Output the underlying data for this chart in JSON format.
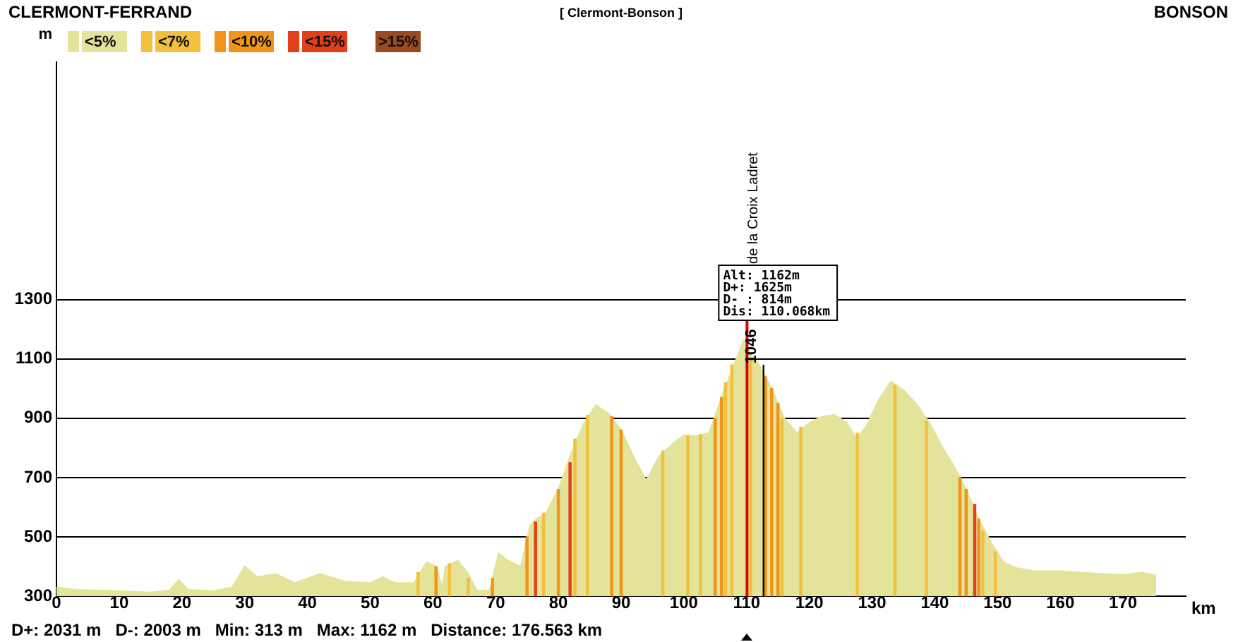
{
  "chart_data": {
    "type": "area",
    "title": "[ Clermont-Bonson ]",
    "xlabel": "km",
    "ylabel": "m",
    "annotations": [
      "CLERMONT-FERRAND",
      "BONSON",
      "D+: 2031 m   D-: 2003 m   Min: 313 m   Max: 1162 m   Distance: 176.563 km",
      "de la Croix Ladret",
      {
        "text": "1046",
        "x": 112.7,
        "y": 1046
      },
      ">15%"
    ],
    "xlim": [
      0,
      180
    ],
    "xticks": [
      0,
      10,
      20,
      30,
      40,
      50,
      60,
      70,
      80,
      90,
      100,
      110,
      120,
      130,
      140,
      150,
      160,
      170
    ],
    "ylim": [
      300,
      2100
    ],
    "yticks": [
      300,
      500,
      700,
      900,
      1100,
      1300
    ],
    "grid": "y",
    "legend": "top left",
    "series": [
      {
        "name": "<5%",
        "color": "#e3e39a",
        "x": [
          0,
          3,
          6,
          10,
          15,
          18,
          19.5,
          21,
          25,
          28,
          30,
          32,
          35,
          38,
          42,
          46,
          50,
          52,
          54,
          57,
          59,
          60.5,
          61.5,
          62,
          64,
          65.5,
          67,
          69,
          70.5,
          72,
          74,
          75.5,
          76.5,
          78,
          80,
          82,
          84,
          86,
          88,
          90,
          92,
          94,
          96,
          98,
          100,
          102,
          104,
          106,
          108,
          109.5,
          110.5,
          112,
          114,
          116,
          118,
          120,
          122,
          124,
          126,
          127.5,
          129,
          131,
          133,
          135,
          137,
          139,
          141,
          143,
          145,
          147,
          149,
          151,
          153,
          156,
          160,
          165,
          170,
          173,
          175.3
        ],
        "values": [
          330,
          322,
          320,
          318,
          313,
          320,
          355,
          322,
          318,
          330,
          400,
          365,
          375,
          345,
          375,
          350,
          345,
          365,
          345,
          345,
          415,
          400,
          330,
          400,
          420,
          380,
          320,
          318,
          445,
          420,
          400,
          540,
          560,
          580,
          660,
          780,
          880,
          945,
          915,
          860,
          770,
          690,
          770,
          810,
          843,
          840,
          850,
          970,
          1080,
          1162,
          1120,
          1080,
          1000,
          900,
          850,
          885,
          905,
          912,
          885,
          830,
          870,
          960,
          1024,
          995,
          950,
          890,
          810,
          740,
          660,
          560,
          480,
          414,
          395,
          385,
          385,
          378,
          372,
          380,
          370
        ]
      },
      {
        "name": "<7%",
        "type": "bar",
        "color": "#f2c03c",
        "x": [
          58,
          63,
          66,
          78,
          83,
          85,
          97,
          101,
          103,
          107,
          108,
          111,
          116,
          119,
          128,
          134,
          139,
          148,
          150
        ],
        "values": [
          380,
          410,
          360,
          580,
          830,
          910,
          790,
          840,
          845,
          1020,
          1080,
          1100,
          900,
          870,
          850,
          1010,
          890,
          520,
          450
        ]
      },
      {
        "name": "<10%",
        "type": "bar",
        "color": "#f0941a",
        "x": [
          60.5,
          69.5,
          75,
          80,
          88.5,
          90,
          105,
          106,
          113,
          114,
          115,
          144,
          145,
          147
        ],
        "values": [
          400,
          360,
          500,
          660,
          905,
          860,
          900,
          970,
          1040,
          1000,
          950,
          700,
          660,
          560
        ]
      },
      {
        "name": "<15%",
        "type": "bar",
        "color": "#e3401a",
        "x": [
          76,
          81.5,
          146
        ],
        "values": [
          550,
          750,
          610
        ]
      }
    ],
    "ref_lines": [
      {
        "axis": "x",
        "value": 110.068,
        "label": "Alt: 1162m\nD+: 1625m\nD- : 814m\nDis: 110.068km",
        "color": "#e00000"
      },
      {
        "axis": "x",
        "value": 112.7,
        "color": "#000000"
      }
    ]
  }
}
